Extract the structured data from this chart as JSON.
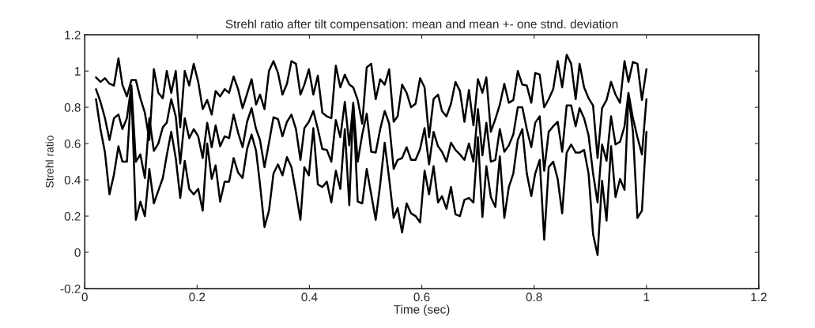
{
  "chart_data": {
    "type": "line",
    "title": "Strehl ratio after tilt compensation: mean and mean +- one stnd. deviation",
    "xlabel": "Time (sec)",
    "ylabel": "Strehl ratio",
    "x": [
      0.02,
      0.028,
      0.036,
      0.044,
      0.052,
      0.06,
      0.067,
      0.075,
      0.083,
      0.091,
      0.099,
      0.107,
      0.115,
      0.123,
      0.131,
      0.139,
      0.146,
      0.154,
      0.162,
      0.17,
      0.178,
      0.186,
      0.194,
      0.202,
      0.21,
      0.218,
      0.226,
      0.233,
      0.241,
      0.249,
      0.257,
      0.265,
      0.273,
      0.281,
      0.289,
      0.297,
      0.305,
      0.312,
      0.32,
      0.328,
      0.336,
      0.344,
      0.352,
      0.36,
      0.368,
      0.376,
      0.384,
      0.391,
      0.399,
      0.407,
      0.415,
      0.423,
      0.431,
      0.439,
      0.447,
      0.455,
      0.463,
      0.471,
      0.478,
      0.486,
      0.494,
      0.502,
      0.51,
      0.518,
      0.526,
      0.534,
      0.542,
      0.55,
      0.557,
      0.565,
      0.573,
      0.581,
      0.589,
      0.597,
      0.605,
      0.613,
      0.621,
      0.629,
      0.636,
      0.644,
      0.652,
      0.66,
      0.668,
      0.676,
      0.684,
      0.692,
      0.7,
      0.708,
      0.715,
      0.723,
      0.731,
      0.739,
      0.747,
      0.755,
      0.763,
      0.771,
      0.779,
      0.787,
      0.795,
      0.802,
      0.81,
      0.818,
      0.826,
      0.834,
      0.842,
      0.85,
      0.858,
      0.866,
      0.874,
      0.881,
      0.889,
      0.897,
      0.905,
      0.913,
      0.921,
      0.929,
      0.937,
      0.945,
      0.953,
      0.961,
      0.968,
      0.976,
      0.984,
      0.992,
      1.0
    ],
    "series": [
      {
        "color": "#000000",
        "values": [
          0.965,
          0.94,
          0.96,
          0.93,
          0.92,
          1.07,
          0.925,
          0.86,
          0.95,
          0.95,
          0.85,
          0.77,
          0.62,
          1.01,
          0.88,
          0.85,
          1.0,
          0.88,
          1.0,
          0.69,
          1.0,
          0.92,
          1.04,
          0.94,
          0.79,
          0.84,
          0.76,
          0.89,
          0.86,
          0.9,
          0.88,
          0.97,
          0.9,
          0.795,
          0.875,
          0.955,
          0.815,
          0.87,
          0.79,
          1.0,
          1.055,
          0.99,
          0.87,
          0.93,
          1.055,
          1.04,
          0.87,
          0.925,
          1.01,
          0.87,
          0.975,
          0.77,
          0.75,
          0.74,
          1.03,
          0.91,
          0.98,
          0.925,
          0.91,
          0.84,
          0.71,
          1.02,
          1.04,
          0.845,
          0.955,
          0.925,
          1.01,
          0.72,
          0.75,
          0.925,
          0.88,
          0.8,
          0.82,
          0.96,
          0.91,
          0.635,
          0.845,
          0.87,
          0.78,
          0.75,
          0.82,
          0.94,
          0.89,
          0.72,
          0.895,
          0.7,
          0.955,
          0.88,
          0.965,
          0.665,
          0.735,
          0.815,
          0.93,
          0.825,
          0.84,
          1.0,
          0.925,
          0.92,
          0.825,
          0.99,
          0.98,
          0.8,
          0.845,
          0.9,
          1.055,
          0.91,
          1.09,
          1.04,
          0.845,
          1.04,
          0.91,
          0.85,
          0.81,
          0.52,
          0.795,
          0.84,
          0.94,
          0.87,
          0.825,
          1.055,
          0.94,
          1.05,
          1.04,
          0.84,
          1.01
        ]
      },
      {
        "color": "#000000",
        "values": [
          0.9,
          0.83,
          0.74,
          0.62,
          0.74,
          0.76,
          0.68,
          0.74,
          0.92,
          0.5,
          0.54,
          0.41,
          0.74,
          0.56,
          0.6,
          0.69,
          0.715,
          0.845,
          0.75,
          0.49,
          0.74,
          0.63,
          0.68,
          0.64,
          0.52,
          0.715,
          0.58,
          0.7,
          0.585,
          0.64,
          0.63,
          0.76,
          0.66,
          0.58,
          0.72,
          0.795,
          0.68,
          0.62,
          0.47,
          0.605,
          0.745,
          0.735,
          0.64,
          0.72,
          0.76,
          0.68,
          0.51,
          0.685,
          0.72,
          0.78,
          0.68,
          0.57,
          0.565,
          0.5,
          0.73,
          0.635,
          0.83,
          0.59,
          0.825,
          0.5,
          0.65,
          0.765,
          0.555,
          0.55,
          0.68,
          0.78,
          0.71,
          0.46,
          0.51,
          0.52,
          0.58,
          0.51,
          0.51,
          0.57,
          0.685,
          0.485,
          0.665,
          0.585,
          0.555,
          0.5,
          0.605,
          0.565,
          0.54,
          0.51,
          0.6,
          0.5,
          0.79,
          0.535,
          0.715,
          0.5,
          0.51,
          0.68,
          0.555,
          0.59,
          0.65,
          0.8,
          0.8,
          0.68,
          0.58,
          0.715,
          0.75,
          0.45,
          0.665,
          0.695,
          0.72,
          0.555,
          0.81,
          0.81,
          0.695,
          0.795,
          0.74,
          0.645,
          0.435,
          0.275,
          0.595,
          0.505,
          0.75,
          0.595,
          0.61,
          0.695,
          0.88,
          0.74,
          0.635,
          0.54,
          0.845
        ]
      },
      {
        "color": "#000000",
        "values": [
          0.845,
          0.68,
          0.55,
          0.32,
          0.43,
          0.585,
          0.5,
          0.5,
          0.9,
          0.18,
          0.28,
          0.2,
          0.46,
          0.27,
          0.34,
          0.41,
          0.535,
          0.665,
          0.52,
          0.3,
          0.505,
          0.35,
          0.32,
          0.35,
          0.23,
          0.6,
          0.405,
          0.48,
          0.28,
          0.39,
          0.39,
          0.52,
          0.44,
          0.41,
          0.57,
          0.65,
          0.56,
          0.375,
          0.14,
          0.23,
          0.435,
          0.485,
          0.425,
          0.525,
          0.47,
          0.33,
          0.18,
          0.47,
          0.425,
          0.685,
          0.375,
          0.36,
          0.39,
          0.275,
          0.45,
          0.35,
          0.68,
          0.26,
          0.81,
          0.28,
          0.27,
          0.46,
          0.32,
          0.18,
          0.375,
          0.605,
          0.405,
          0.19,
          0.245,
          0.11,
          0.27,
          0.215,
          0.2,
          0.165,
          0.45,
          0.32,
          0.475,
          0.275,
          0.31,
          0.24,
          0.36,
          0.21,
          0.2,
          0.29,
          0.3,
          0.275,
          0.635,
          0.195,
          0.475,
          0.305,
          0.25,
          0.53,
          0.19,
          0.36,
          0.435,
          0.62,
          0.68,
          0.435,
          0.31,
          0.435,
          0.51,
          0.07,
          0.47,
          0.5,
          0.405,
          0.215,
          0.55,
          0.595,
          0.55,
          0.55,
          0.565,
          0.435,
          0.1,
          -0.015,
          0.395,
          0.175,
          0.585,
          0.305,
          0.405,
          0.345,
          0.865,
          0.665,
          0.19,
          0.23,
          0.665
        ]
      }
    ],
    "xlim": [
      0,
      1.2
    ],
    "xticks": [
      0,
      0.2,
      0.4,
      0.6,
      0.8,
      1,
      1.2
    ],
    "ylim": [
      -0.2,
      1.2
    ],
    "yticks": [
      -0.2,
      0,
      0.2,
      0.4,
      0.6,
      0.8,
      1,
      1.2
    ],
    "grid": false
  }
}
